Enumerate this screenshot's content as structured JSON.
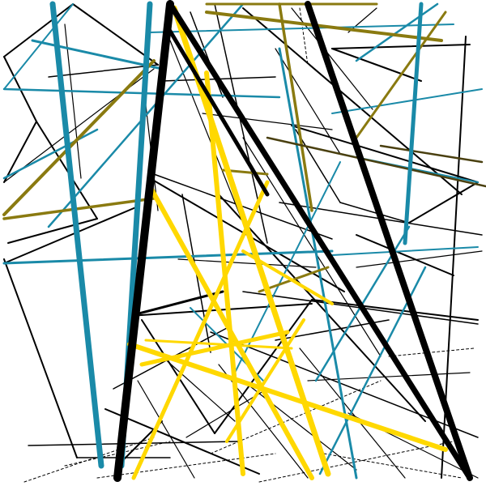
{
  "artwork": {
    "background": "#ffffff",
    "palette": {
      "black": "#000000",
      "teal": "#1a8aa8",
      "olive": "#8a7a10",
      "yellow": "#ffd800",
      "dark_olive": "#4a4010"
    }
  }
}
